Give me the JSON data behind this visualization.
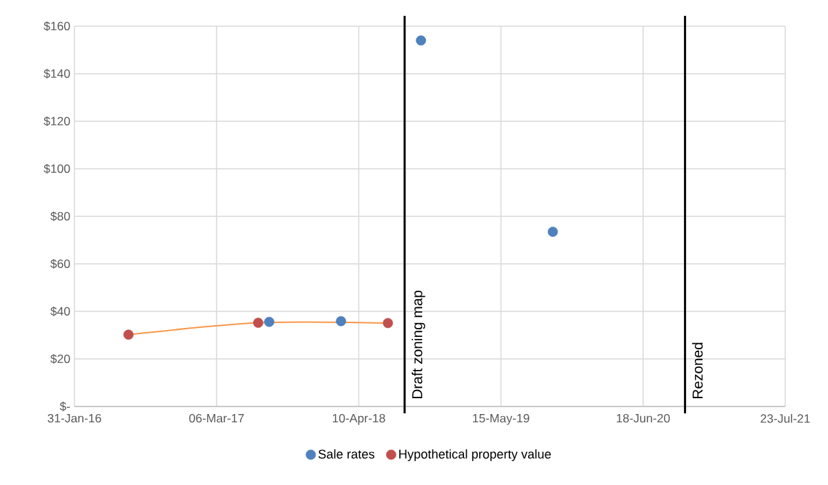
{
  "chart_data": {
    "type": "scatter",
    "xlim": [
      "2016-01-31",
      "2021-07-23"
    ],
    "xticks": [
      {
        "value": "2016-01-31",
        "label": "31-Jan-16"
      },
      {
        "value": "2017-03-06",
        "label": "06-Mar-17"
      },
      {
        "value": "2018-04-10",
        "label": "10-Apr-18"
      },
      {
        "value": "2019-05-15",
        "label": "15-May-19"
      },
      {
        "value": "2020-06-18",
        "label": "18-Jun-20"
      },
      {
        "value": "2021-07-23",
        "label": "23-Jul-21"
      }
    ],
    "ylim": [
      0,
      160
    ],
    "yticks": [
      {
        "value": 0,
        "label": "$-"
      },
      {
        "value": 20,
        "label": "$20"
      },
      {
        "value": 40,
        "label": "$40"
      },
      {
        "value": 60,
        "label": "$60"
      },
      {
        "value": 80,
        "label": "$80"
      },
      {
        "value": 100,
        "label": "$100"
      },
      {
        "value": 120,
        "label": "$120"
      },
      {
        "value": 140,
        "label": "$140"
      },
      {
        "value": 160,
        "label": "$160"
      }
    ],
    "grid": true,
    "legend": "bottom",
    "series": [
      {
        "name": "Sale rates",
        "color": "#4f81bd",
        "marker": "circle",
        "x": [
          "2017-08-01",
          "2018-02-19",
          "2018-10-02",
          "2019-10-08"
        ],
        "values": [
          35.6,
          35.9,
          154,
          73.5
        ]
      },
      {
        "name": "Hypothetical property value",
        "color": "#c0504d",
        "marker": "circle",
        "x": [
          "2016-07-01",
          "2017-07-01",
          "2018-07-01"
        ],
        "values": [
          30.2,
          35.2,
          35.1
        ]
      },
      {
        "type": "line",
        "marker": "none",
        "color": "#f79646",
        "x": [
          "2016-07-01",
          "2017-07-01",
          "2018-07-01"
        ],
        "values": [
          30.2,
          35.2,
          35.1
        ]
      }
    ],
    "ref_lines": [
      {
        "axis": "x",
        "value": "2018-08-17",
        "label": "Draft zoning map",
        "color": "#000000"
      },
      {
        "axis": "x",
        "value": "2020-10-14",
        "label": "Rezoned",
        "color": "#000000"
      }
    ]
  }
}
